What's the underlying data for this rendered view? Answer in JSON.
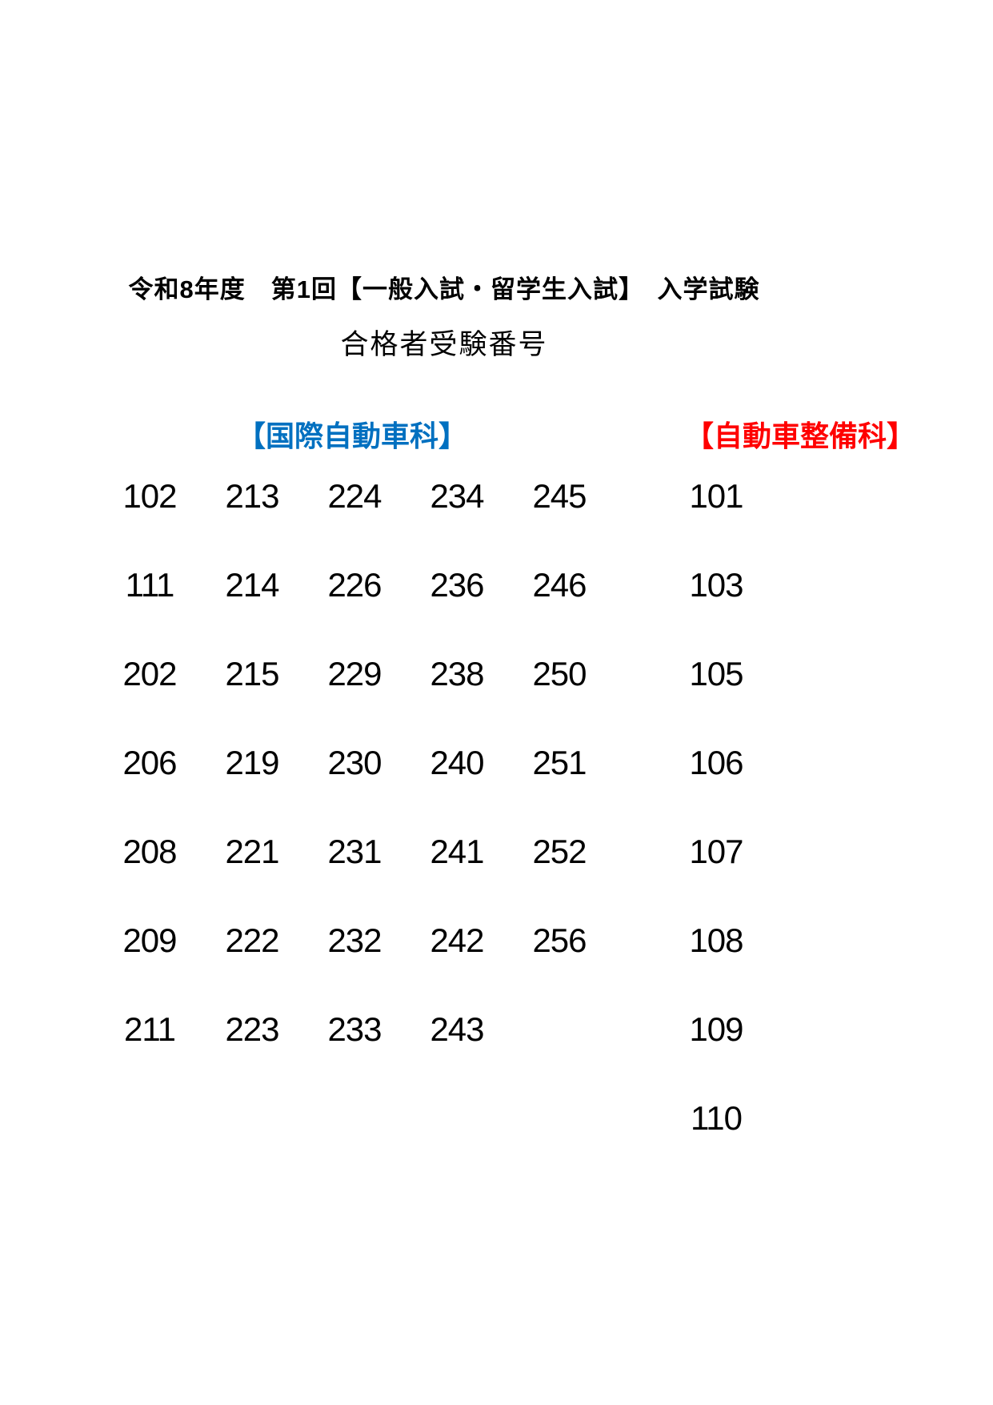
{
  "page": {
    "title": "令和8年度　第1回【一般入試・留学生入試】　入学試験",
    "subtitle": "合格者受験番号"
  },
  "sections": {
    "international": {
      "header": "【国際自動車科】",
      "header_color": "#0070C0",
      "rows": [
        [
          "102",
          "213",
          "224",
          "234",
          "245"
        ],
        [
          "111",
          "214",
          "226",
          "236",
          "246"
        ],
        [
          "202",
          "215",
          "229",
          "238",
          "250"
        ],
        [
          "206",
          "219",
          "230",
          "240",
          "251"
        ],
        [
          "208",
          "221",
          "231",
          "241",
          "252"
        ],
        [
          "209",
          "222",
          "232",
          "242",
          "256"
        ],
        [
          "211",
          "223",
          "233",
          "243",
          ""
        ]
      ]
    },
    "maintenance": {
      "header": "【自動車整備科】",
      "header_color": "#FF0000",
      "numbers": [
        "101",
        "103",
        "105",
        "106",
        "107",
        "108",
        "109",
        "110"
      ]
    }
  }
}
